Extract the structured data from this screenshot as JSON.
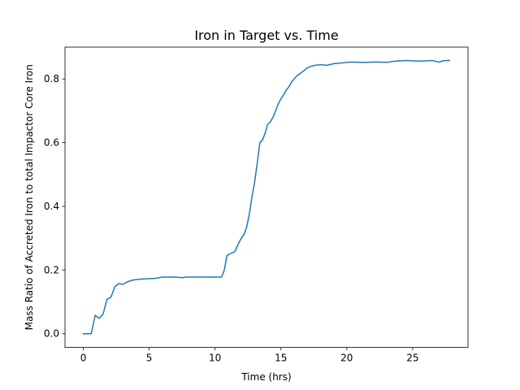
{
  "chart_data": {
    "type": "line",
    "title": "Iron in Target vs. Time",
    "xlabel": "Time (hrs)",
    "ylabel": "Mass Ratio of Accreted Iron to total Impactor Core Iron",
    "xlim": [
      -1.39,
      29.2
    ],
    "ylim": [
      -0.043,
      0.9
    ],
    "xticks": [
      0,
      5,
      10,
      15,
      20,
      25
    ],
    "xtick_labels": [
      "0",
      "5",
      "10",
      "15",
      "20",
      "25"
    ],
    "yticks": [
      0.0,
      0.2,
      0.4,
      0.6,
      0.8
    ],
    "ytick_labels": [
      "0.0",
      "0.2",
      "0.4",
      "0.6",
      "0.8"
    ],
    "grid": false,
    "series": [
      {
        "color": "#1f77b4",
        "x": [
          0.0,
          0.3,
          0.6,
          0.9,
          1.2,
          1.5,
          1.8,
          2.1,
          2.4,
          2.7,
          3.0,
          3.3,
          3.6,
          4.0,
          4.5,
          5.0,
          5.5,
          6.0,
          7.0,
          7.5,
          7.8,
          8.5,
          9.5,
          10.5,
          10.7,
          10.9,
          11.1,
          11.5,
          11.8,
          12.0,
          12.2,
          12.4,
          12.6,
          12.8,
          13.0,
          13.2,
          13.4,
          13.6,
          13.8,
          14.0,
          14.2,
          14.4,
          14.6,
          14.8,
          15.0,
          15.2,
          15.4,
          15.6,
          15.8,
          16.0,
          16.2,
          16.4,
          16.6,
          16.8,
          17.0,
          17.3,
          17.6,
          18.0,
          18.5,
          19.0,
          19.5,
          20.0,
          20.5,
          21.0,
          21.5,
          22.0,
          22.5,
          23.0,
          23.5,
          24.0,
          24.5,
          25.0,
          25.5,
          26.0,
          26.5,
          27.0,
          27.3,
          27.6,
          27.8
        ],
        "y": [
          0.0,
          0.0,
          0.0,
          0.058,
          0.048,
          0.062,
          0.108,
          0.115,
          0.148,
          0.158,
          0.155,
          0.162,
          0.167,
          0.17,
          0.172,
          0.173,
          0.174,
          0.178,
          0.178,
          0.176,
          0.178,
          0.178,
          0.178,
          0.178,
          0.2,
          0.245,
          0.25,
          0.258,
          0.285,
          0.3,
          0.312,
          0.335,
          0.375,
          0.43,
          0.475,
          0.535,
          0.6,
          0.608,
          0.63,
          0.658,
          0.665,
          0.68,
          0.7,
          0.722,
          0.738,
          0.75,
          0.765,
          0.775,
          0.79,
          0.8,
          0.81,
          0.815,
          0.822,
          0.828,
          0.835,
          0.84,
          0.843,
          0.845,
          0.843,
          0.848,
          0.85,
          0.852,
          0.853,
          0.852,
          0.852,
          0.853,
          0.853,
          0.852,
          0.855,
          0.857,
          0.858,
          0.857,
          0.856,
          0.857,
          0.858,
          0.853,
          0.857,
          0.858,
          0.858
        ]
      }
    ]
  }
}
